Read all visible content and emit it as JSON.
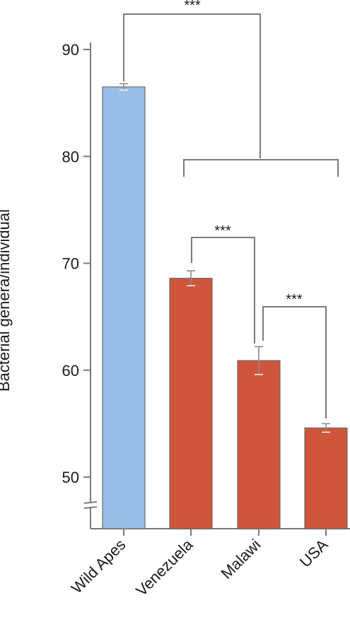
{
  "chart_data": {
    "type": "bar",
    "categories": [
      "Wild Apes",
      "Venezuela",
      "Malawi",
      "USA"
    ],
    "values": [
      86.5,
      68.6,
      60.9,
      54.6
    ],
    "errors": [
      0.3,
      0.7,
      1.3,
      0.4
    ],
    "colors": [
      "#99bfe8",
      "#cf563a",
      "#cf563a",
      "#cf563a"
    ],
    "ylabel": "Bacterial genera/individual",
    "yticks": [
      50,
      60,
      70,
      80,
      90
    ],
    "ylim": [
      45,
      92
    ],
    "axis_break": true,
    "significance": [
      {
        "from": "Wild Apes",
        "to": "Venezuela–USA group",
        "label": "***"
      },
      {
        "from": "Venezuela",
        "to": "Malawi",
        "label": "***"
      },
      {
        "from": "Malawi",
        "to": "USA",
        "label": "***"
      }
    ]
  }
}
